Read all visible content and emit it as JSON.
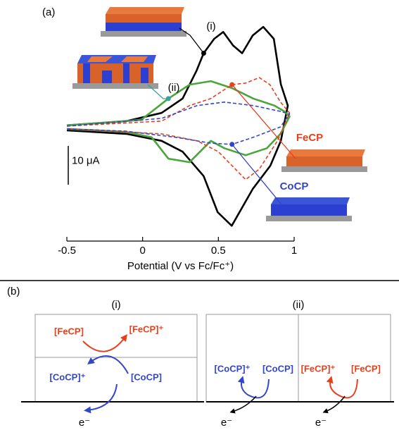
{
  "chart_data": {
    "type": "line",
    "panel_label": "(a)",
    "xlabel": "Potential (V vs Fc/Fc⁺)",
    "xlim": [
      -0.5,
      1
    ],
    "xticks": [
      -0.5,
      0,
      0.5,
      1
    ],
    "ylim": [
      -28,
      28
    ],
    "scale_bar": {
      "value": 10,
      "label": "10 μA"
    },
    "series": [
      {
        "name": "(i)",
        "color": "#000000",
        "dashed": false,
        "x": [
          -0.5,
          -0.106,
          0.125,
          0.264,
          0.356,
          0.403,
          0.472,
          0.532,
          0.597,
          0.657,
          0.727,
          0.796,
          0.866,
          0.912,
          0.958,
          0.912,
          0.843,
          0.727,
          0.588,
          0.495,
          0.403,
          0.264,
          0.125,
          -0.106,
          -0.5
        ],
        "values": [
          0.4,
          1.5,
          3.6,
          7.3,
          14.5,
          19,
          22.7,
          24.5,
          21,
          19,
          23.6,
          25.8,
          22.7,
          11,
          5.5,
          -3.6,
          -10,
          -16,
          -25.5,
          -22,
          -12.7,
          -6.4,
          -3.6,
          -1.8,
          -0.9
        ]
      },
      {
        "name": "(ii)",
        "color": "#4aa53a",
        "dashed": false,
        "x": [
          -0.5,
          -0.01,
          0.17,
          0.31,
          0.45,
          0.59,
          0.73,
          0.87,
          0.935,
          0.97,
          0.91,
          0.82,
          0.68,
          0.54,
          0.45,
          0.31,
          0.17,
          0.06,
          -0.11,
          -0.5
        ],
        "values": [
          0.4,
          1.8,
          7.3,
          10.9,
          11.8,
          10,
          7.3,
          5.5,
          4,
          2.7,
          -1.8,
          -5.5,
          -7.3,
          -5.5,
          -3.6,
          -9.1,
          -8.2,
          -2.7,
          -1.3,
          -0.5
        ]
      },
      {
        "name": "FeCP",
        "color": "#e8401c",
        "dashed": true,
        "x": [
          -0.5,
          0.125,
          0.31,
          0.45,
          0.59,
          0.68,
          0.77,
          0.84,
          0.91,
          0.97,
          0.89,
          0.77,
          0.68,
          0.59,
          0.5,
          0.36,
          0.125,
          -0.5
        ],
        "values": [
          0.2,
          1.5,
          5.5,
          7.3,
          10.9,
          11.3,
          12.7,
          10.9,
          6.4,
          3.6,
          -3.6,
          -10.9,
          -13.6,
          -10,
          -6.4,
          -3.6,
          -1.8,
          -0.5
        ]
      },
      {
        "name": "CoCP",
        "color": "#3346c8",
        "dashed": true,
        "x": [
          -0.5,
          0.125,
          0.36,
          0.54,
          0.73,
          0.91,
          0.97,
          0.91,
          0.73,
          0.59,
          0.45,
          0.22,
          -0.11,
          -0.5
        ],
        "values": [
          0.2,
          2.2,
          5.5,
          6.4,
          5.5,
          4,
          3.3,
          0,
          -2.7,
          -4.5,
          -4.2,
          -2.7,
          -1.1,
          -0.5
        ]
      }
    ]
  },
  "diagram": {
    "panel_label": "(b)",
    "left": {
      "label": "(i)",
      "fe": "[FeCP]",
      "fe_plus": "[FeCP]⁺",
      "co_plus": "[CoCP]⁺",
      "co": "[CoCP]",
      "electron": "e⁻"
    },
    "right": {
      "label": "(ii)",
      "co_plus": "[CoCP]⁺",
      "co": "[CoCP]",
      "fe_plus": "[FeCP]⁺",
      "fe": "[FeCP]",
      "electron_co": "e⁻",
      "electron_fe": "e⁻"
    }
  }
}
